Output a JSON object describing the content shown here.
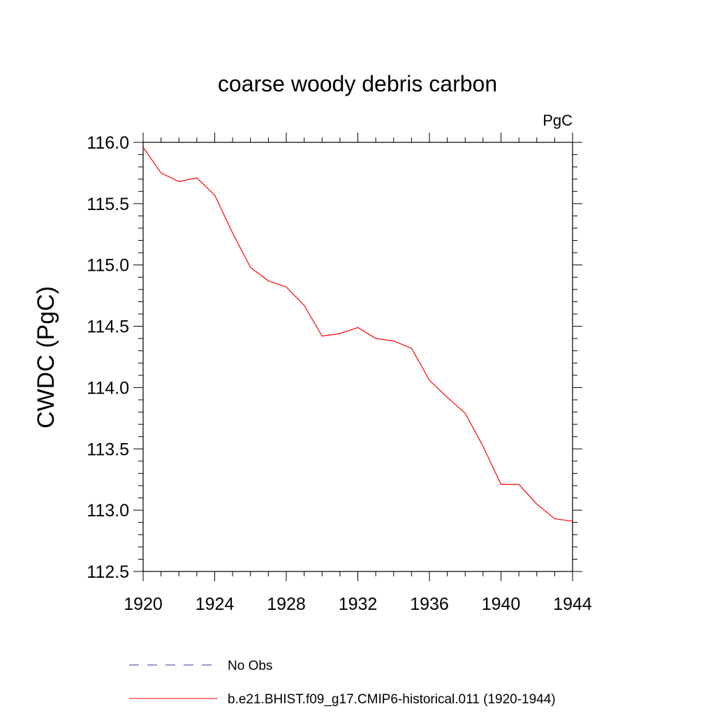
{
  "chart_data": {
    "type": "line",
    "title": "coarse woody debris carbon",
    "units": "PgC",
    "ylabel": "CWDC  (PgC)",
    "xlabel": "",
    "xlim": [
      1920,
      1944
    ],
    "ylim": [
      112.5,
      116.0
    ],
    "xticks": [
      1920,
      1924,
      1928,
      1932,
      1936,
      1940,
      1944
    ],
    "yticks": [
      112.5,
      113.0,
      113.5,
      114.0,
      114.5,
      115.0,
      115.5,
      116.0
    ],
    "ytick_format": 1,
    "grid": false,
    "legend_position": "bottom",
    "series": [
      {
        "name": "No Obs",
        "color": "#3a3a9a",
        "dash": "dashed",
        "x": [],
        "values": []
      },
      {
        "name": "b.e21.BHIST.f09_g17.CMIP6-historical.011 (1920-1944)",
        "color": "#ff0000",
        "dash": "solid",
        "x": [
          1920,
          1921,
          1922,
          1923,
          1924,
          1925,
          1926,
          1927,
          1928,
          1929,
          1930,
          1931,
          1932,
          1933,
          1934,
          1935,
          1936,
          1937,
          1938,
          1939,
          1940,
          1941,
          1942,
          1943,
          1944
        ],
        "values": [
          115.96,
          115.75,
          115.68,
          115.71,
          115.57,
          115.26,
          114.98,
          114.87,
          114.82,
          114.67,
          114.42,
          114.44,
          114.49,
          114.4,
          114.38,
          114.32,
          114.06,
          113.92,
          113.79,
          113.52,
          113.21,
          113.21,
          113.05,
          112.93,
          112.91
        ]
      }
    ]
  }
}
